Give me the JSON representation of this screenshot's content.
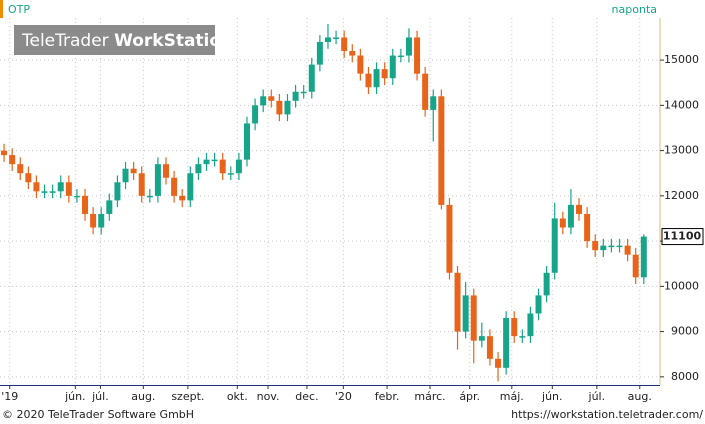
{
  "chart_data": {
    "type": "candlestick",
    "title": "OTP",
    "interval": "naponta",
    "watermark": [
      "TeleTrader",
      "WorkStation"
    ],
    "footer": [
      "© 2020 TeleTrader Software GmbH",
      "https://workstation.teletrader.com/"
    ],
    "up_color": "#17a589",
    "down_color": "#e8641b",
    "grid": true,
    "ylim": [
      7820,
      15930
    ],
    "yticks": [
      8000,
      9000,
      10000,
      11000,
      12000,
      13000,
      14000,
      15000
    ],
    "xlim": [
      -0.5,
      81
    ],
    "xticks": [
      {
        "value": 0.7,
        "label": "'19"
      },
      {
        "value": 8.8,
        "label": "jún."
      },
      {
        "value": 11.9,
        "label": "júl."
      },
      {
        "value": 17.2,
        "label": "aug."
      },
      {
        "value": 22.7,
        "label": "szept."
      },
      {
        "value": 28.8,
        "label": "okt."
      },
      {
        "value": 32.6,
        "label": "nov."
      },
      {
        "value": 37.4,
        "label": "dec."
      },
      {
        "value": 41.9,
        "label": "'20"
      },
      {
        "value": 47.3,
        "label": "febr."
      },
      {
        "value": 52.6,
        "label": "márc."
      },
      {
        "value": 57.5,
        "label": "ápr."
      },
      {
        "value": 62.7,
        "label": "máj."
      },
      {
        "value": 67.7,
        "label": "jún."
      },
      {
        "value": 73.2,
        "label": "júl."
      },
      {
        "value": 78.5,
        "label": "aug."
      }
    ],
    "open": [
      13000,
      12900,
      12700,
      12500,
      12300,
      12100,
      12100,
      12100,
      12300,
      12000,
      12000,
      11600,
      11300,
      11600,
      11900,
      12300,
      12600,
      12500,
      12000,
      12000,
      12700,
      12400,
      12000,
      11900,
      12500,
      12700,
      12800,
      12800,
      12500,
      12500,
      12800,
      13600,
      14000,
      14200,
      14100,
      13800,
      14100,
      14300,
      14300,
      14900,
      15400,
      15500,
      15500,
      15200,
      15100,
      14700,
      14400,
      14800,
      14600,
      15100,
      15100,
      15500,
      14700,
      13900,
      14200,
      11800,
      10300,
      9000,
      9800,
      8800,
      8900,
      8400,
      8200,
      9300,
      8900,
      8900,
      9400,
      9800,
      10300,
      11500,
      11300,
      11800,
      11600,
      11000,
      10800,
      10900,
      10900,
      10900,
      10700,
      10200
    ],
    "close": [
      12900,
      12700,
      12500,
      12300,
      12100,
      12100,
      12100,
      12300,
      12000,
      12000,
      11600,
      11300,
      11600,
      11900,
      12300,
      12600,
      12500,
      12000,
      12000,
      12700,
      12400,
      12000,
      11900,
      12500,
      12700,
      12800,
      12800,
      12500,
      12500,
      12800,
      13600,
      14000,
      14200,
      14100,
      13800,
      14100,
      14300,
      14300,
      14900,
      15400,
      15500,
      15500,
      15200,
      15100,
      14700,
      14400,
      14800,
      14600,
      15100,
      15100,
      15500,
      14700,
      13900,
      14200,
      11800,
      10300,
      9000,
      9800,
      8800,
      8900,
      8400,
      8200,
      9300,
      8900,
      8900,
      9400,
      9800,
      10300,
      11500,
      11300,
      11800,
      11600,
      11000,
      10800,
      10900,
      10900,
      10900,
      10700,
      10200,
      11100
    ],
    "high": [
      13150,
      13050,
      12850,
      12650,
      12450,
      12250,
      12250,
      12450,
      12450,
      12150,
      12150,
      11750,
      11750,
      12050,
      12450,
      12750,
      12750,
      12650,
      12150,
      12850,
      12850,
      12550,
      12150,
      12650,
      12850,
      12950,
      12950,
      12950,
      12650,
      12950,
      13750,
      14150,
      14350,
      14350,
      14250,
      14250,
      14450,
      14450,
      15050,
      15550,
      15800,
      15650,
      15650,
      15350,
      15250,
      14850,
      14950,
      14950,
      15250,
      15250,
      15700,
      15650,
      14850,
      14350,
      14350,
      11950,
      10450,
      10100,
      9950,
      9200,
      9050,
      8550,
      9450,
      9450,
      9050,
      9550,
      9950,
      10450,
      11850,
      11650,
      12150,
      11950,
      11750,
      11150,
      11050,
      11050,
      11050,
      11050,
      10850,
      11150
    ],
    "low": [
      12750,
      12550,
      12350,
      12150,
      11950,
      11950,
      11950,
      11950,
      11850,
      11850,
      11450,
      11150,
      11150,
      11450,
      11750,
      12150,
      12350,
      11850,
      11850,
      11850,
      12250,
      11850,
      11750,
      11750,
      12350,
      12550,
      12650,
      12350,
      12350,
      12350,
      12650,
      13450,
      13850,
      13950,
      13650,
      13650,
      13950,
      14150,
      14150,
      14750,
      15250,
      15350,
      15050,
      14950,
      14550,
      14250,
      14250,
      14450,
      14450,
      14950,
      14950,
      14550,
      13750,
      13200,
      11700,
      10150,
      8600,
      8850,
      8300,
      8650,
      8250,
      7900,
      8050,
      8750,
      8750,
      8750,
      9250,
      9650,
      10150,
      11150,
      11150,
      11450,
      10850,
      10650,
      10650,
      10750,
      10750,
      10550,
      10050,
      10050
    ]
  }
}
